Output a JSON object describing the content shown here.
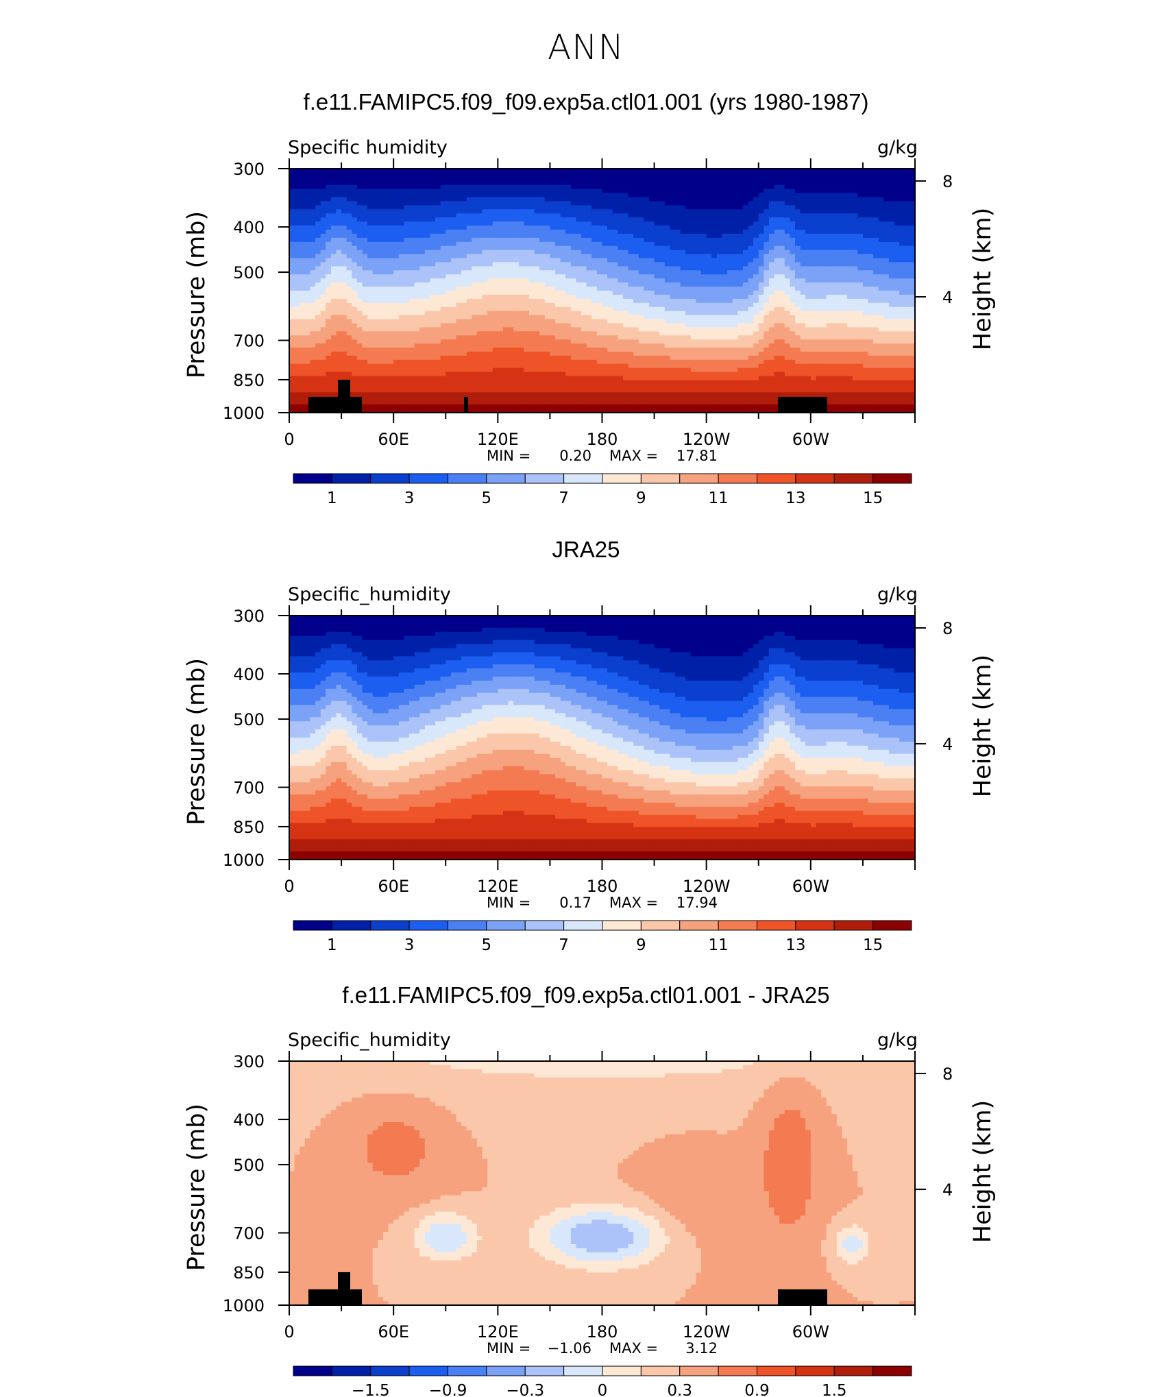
{
  "page_title": "ANN",
  "colors": {
    "abs_scale": [
      "#00008b",
      "#0020a8",
      "#0b3fce",
      "#1c5ef0",
      "#4a80f4",
      "#7ba2f6",
      "#abc3f8",
      "#d9e7fb",
      "#fde8d6",
      "#fbc7ab",
      "#f7a27e",
      "#f47a52",
      "#ee5428",
      "#d63214",
      "#b01d0a",
      "#8b0000"
    ],
    "diff_scale": [
      "#00008b",
      "#0020a8",
      "#0b3fce",
      "#1c5ef0",
      "#4a80f4",
      "#7ba2f6",
      "#abc3f8",
      "#d9e7fb",
      "#fde8d6",
      "#fbc7ab",
      "#f7a27e",
      "#f47a52",
      "#ee5428",
      "#d63214",
      "#b01d0a",
      "#8b0000"
    ]
  },
  "chart_data": [
    {
      "type": "heatmap",
      "title": "f.e11.FAMIPC5.f09_f09.exp5a.ctl01.001 (yrs 1980-1987)",
      "variable_label": "Specific humidity",
      "units": "g/kg",
      "ylabel": "Pressure (mb)",
      "ylabel_right": "Height (km)",
      "xticks": [
        "0",
        "60E",
        "120E",
        "180",
        "120W",
        "60W"
      ],
      "yticks": [
        "300",
        "400",
        "500",
        "700",
        "850",
        "1000"
      ],
      "yticks_right": [
        "8",
        "4"
      ],
      "ylim": [
        1000,
        300
      ],
      "min_label": "MIN =",
      "min": "0.20",
      "max_label": "MAX =",
      "max": "17.81",
      "colorbar_labels": [
        "1",
        "3",
        "5",
        "7",
        "9",
        "11",
        "13",
        "15"
      ]
    },
    {
      "type": "heatmap",
      "title": "JRA25",
      "variable_label": "Specific_humidity",
      "units": "g/kg",
      "ylabel": "Pressure (mb)",
      "ylabel_right": "Height (km)",
      "xticks": [
        "0",
        "60E",
        "120E",
        "180",
        "120W",
        "60W"
      ],
      "yticks": [
        "300",
        "400",
        "500",
        "700",
        "850",
        "1000"
      ],
      "yticks_right": [
        "8",
        "4"
      ],
      "ylim": [
        1000,
        300
      ],
      "min_label": "MIN =",
      "min": "0.17",
      "max_label": "MAX =",
      "max": "17.94",
      "colorbar_labels": [
        "1",
        "3",
        "5",
        "7",
        "9",
        "11",
        "13",
        "15"
      ]
    },
    {
      "type": "heatmap",
      "title": "f.e11.FAMIPC5.f09_f09.exp5a.ctl01.001 - JRA25",
      "variable_label": "Specific_humidity",
      "units": "g/kg",
      "ylabel": "Pressure (mb)",
      "ylabel_right": "Height (km)",
      "xticks": [
        "0",
        "60E",
        "120E",
        "180",
        "120W",
        "60W"
      ],
      "yticks": [
        "300",
        "400",
        "500",
        "700",
        "850",
        "1000"
      ],
      "yticks_right": [
        "8",
        "4"
      ],
      "ylim": [
        1000,
        300
      ],
      "min_label": "MIN =",
      "min": "−1.06",
      "max_label": "MAX =",
      "max": "3.12",
      "colorbar_labels": [
        "−1.5",
        "−0.9",
        "−0.3",
        "0",
        "0.3",
        "0.9",
        "1.5"
      ]
    }
  ]
}
